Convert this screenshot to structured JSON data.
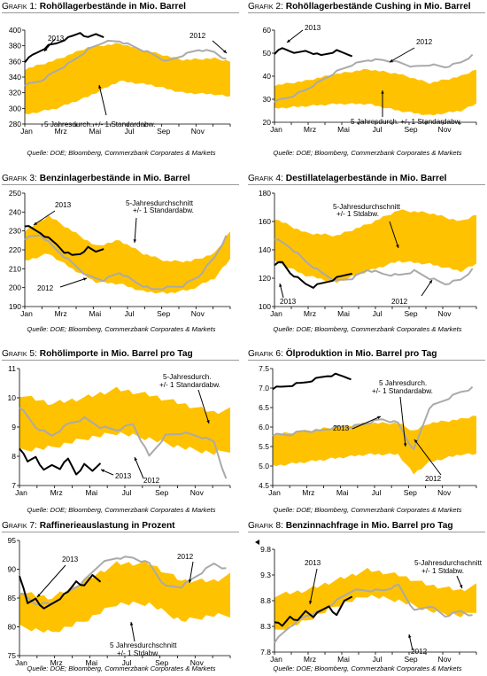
{
  "colors": {
    "band": "#FFC200",
    "avg": "#F2A900",
    "prev": "#AAAAAA",
    "cur": "#000000"
  },
  "panels": [
    {
      "graf": "Grafik 1:",
      "title": "Rohöllagerbestände in Mio. Barrel",
      "source": "Quelle: DOE; Bloomberg, Commerzbank Corporates & Markets"
    },
    {
      "graf": "Grafik 2:",
      "title": "Rohöllagerbestände Cushing in Mio. Barrel",
      "source": "Quelle: DOE; Bloomberg, Commerzbank Corporates & Markets"
    },
    {
      "graf": "Grafik 3:",
      "title": "Benzinlagerbestände in Mio. Barrel",
      "source": "Quelle: DOE; Bloomberg, Commerzbank Corporates & Markets"
    },
    {
      "graf": "Grafik 4:",
      "title": "Destillatelagerbestände in Mio. Barrel",
      "source": "Quelle: DOE; Bloomberg, Commerzbank Corporates & Markets"
    },
    {
      "graf": "Grafik 5:",
      "title": "Rohölimporte in Mio. Barrel pro Tag",
      "source": "Quelle: DOE; Bloomberg, Commerzbank Corporates & Markets"
    },
    {
      "graf": "Grafik 6:",
      "title": "Ölproduktion in Mio. Barrel pro Tag",
      "source": "Quelle: DOE; Bloomberg, Commerzbank Corporates & Markets"
    },
    {
      "graf": "Grafik 7:",
      "title": "Raffinerieauslastung in Prozent",
      "source": "Quelle: DOE; Bloomberg, Commerzbank Corporates & Markets"
    },
    {
      "graf": "Grafik 8:",
      "title": "Benzinnachfrage in Mio. Barrel pro Tag",
      "source": "Quelle: DOE; Bloomberg, Commerzbank Corporates & Markets"
    }
  ],
  "chart_data": [
    {
      "type": "line",
      "title": "Rohöllagerbestände in Mio. Barrel",
      "xticks": [
        "Jan",
        "Mrz",
        "Mai",
        "Jul",
        "Sep",
        "Nov"
      ],
      "ylim": [
        280,
        400
      ],
      "yticks": [
        280,
        300,
        320,
        340,
        360,
        380,
        400
      ],
      "annotations": [
        "2013",
        "2012",
        "5 Jahresdurch. +/- 1 Standardabw."
      ],
      "band": {
        "weeks": [
          0,
          8,
          16,
          24,
          32,
          40,
          48,
          52
        ],
        "low": [
          292,
          300,
          315,
          335,
          330,
          320,
          318,
          315
        ],
        "high": [
          350,
          362,
          378,
          383,
          372,
          362,
          364,
          360
        ]
      },
      "series": [
        {
          "name": "2012",
          "weeks": [
            0,
            4,
            8,
            12,
            16,
            20,
            24,
            28,
            32,
            36,
            40,
            44,
            48,
            51
          ],
          "values": [
            330,
            335,
            348,
            360,
            375,
            385,
            386,
            378,
            370,
            360,
            368,
            375,
            372,
            362
          ]
        },
        {
          "name": "2013",
          "weeks": [
            0,
            2,
            4,
            6,
            8,
            10,
            12,
            14,
            16,
            18,
            20
          ],
          "values": [
            360,
            368,
            374,
            380,
            383,
            388,
            392,
            397,
            390,
            395,
            392
          ]
        }
      ]
    },
    {
      "type": "line",
      "title": "Rohöllagerbestände Cushing in Mio. Barrel",
      "xticks": [
        "Jan",
        "Mrz",
        "Mai",
        "Jul",
        "Sep",
        "Nov"
      ],
      "ylim": [
        20,
        60
      ],
      "yticks": [
        20,
        30,
        40,
        50,
        60
      ],
      "annotations": [
        "2013",
        "2012",
        "5 Jahresdurch. +/- 1 Standardabw."
      ],
      "band": {
        "weeks": [
          0,
          8,
          16,
          24,
          32,
          40,
          48,
          52
        ],
        "low": [
          26,
          27,
          28,
          28,
          25,
          23,
          25,
          28
        ],
        "high": [
          36,
          38,
          41,
          43,
          41,
          37,
          40,
          43
        ]
      },
      "series": [
        {
          "name": "2012",
          "weeks": [
            0,
            4,
            8,
            12,
            16,
            20,
            24,
            28,
            32,
            36,
            40,
            44,
            48,
            51
          ],
          "values": [
            29,
            31,
            34,
            38,
            42,
            45,
            47,
            47,
            46,
            44,
            45,
            44,
            46,
            49
          ]
        },
        {
          "name": "2013",
          "weeks": [
            0,
            2,
            4,
            6,
            8,
            10,
            12,
            14,
            16,
            18,
            20
          ],
          "values": [
            50,
            52,
            51,
            50,
            51,
            50,
            49,
            50,
            51,
            50,
            49
          ]
        }
      ]
    },
    {
      "type": "line",
      "title": "Benzinlagerbestände in Mio. Barrel",
      "xticks": [
        "Jan",
        "Mrz",
        "Mai",
        "Jul",
        "Sep",
        "Nov"
      ],
      "ylim": [
        190,
        250
      ],
      "yticks": [
        190,
        200,
        210,
        220,
        230,
        240,
        250
      ],
      "annotations": [
        "2013",
        "5-Jahresdurchschnitt",
        "+/- 1 Standardabw.",
        "2012"
      ],
      "band": {
        "weeks": [
          0,
          6,
          12,
          18,
          24,
          30,
          36,
          42,
          48,
          52
        ],
        "low": [
          214,
          218,
          210,
          203,
          202,
          198,
          197,
          199,
          205,
          215
        ],
        "high": [
          230,
          238,
          230,
          222,
          225,
          218,
          214,
          214,
          218,
          230
        ]
      },
      "series": [
        {
          "name": "2012",
          "weeks": [
            0,
            4,
            8,
            12,
            16,
            20,
            24,
            28,
            32,
            36,
            40,
            44,
            48,
            51
          ],
          "values": [
            226,
            228,
            220,
            213,
            206,
            204,
            208,
            203,
            199,
            200,
            201,
            206,
            216,
            227
          ]
        },
        {
          "name": "2013",
          "weeks": [
            0,
            2,
            4,
            6,
            8,
            10,
            12,
            14,
            16,
            18,
            20
          ],
          "values": [
            233,
            231,
            229,
            226,
            223,
            219,
            217,
            218,
            221,
            219,
            221
          ]
        }
      ]
    },
    {
      "type": "line",
      "title": "Destillatelagerbestände in Mio. Barrel",
      "xticks": [
        "Jan",
        "Mrz",
        "Mai",
        "Jul",
        "Sep",
        "Nov"
      ],
      "ylim": [
        100,
        180
      ],
      "yticks": [
        100,
        120,
        140,
        160,
        180
      ],
      "annotations": [
        "5-Jahresdurchschnitt",
        "+/- 1 Stdabw.",
        "2013",
        "2012"
      ],
      "band": {
        "weeks": [
          0,
          8,
          16,
          24,
          32,
          40,
          48,
          52
        ],
        "low": [
          132,
          122,
          117,
          125,
          132,
          130,
          125,
          130
        ],
        "high": [
          162,
          152,
          150,
          158,
          168,
          166,
          160,
          165
        ]
      },
      "series": [
        {
          "name": "2012",
          "weeks": [
            0,
            4,
            8,
            12,
            16,
            20,
            24,
            28,
            32,
            36,
            40,
            44,
            48,
            51
          ],
          "values": [
            148,
            142,
            132,
            124,
            118,
            120,
            126,
            123,
            122,
            125,
            120,
            116,
            119,
            126
          ]
        },
        {
          "name": "2013",
          "weeks": [
            0,
            2,
            4,
            6,
            8,
            10,
            12,
            14,
            16,
            18,
            20
          ],
          "values": [
            130,
            131,
            124,
            120,
            116,
            114,
            116,
            118,
            120,
            122,
            124
          ]
        }
      ]
    },
    {
      "type": "line",
      "title": "Rohölimporte in Mio. Barrel pro Tag",
      "xticks": [
        "Jan",
        "Mrz",
        "Mai",
        "Jul",
        "Sep",
        "Nov"
      ],
      "ylim": [
        7,
        11
      ],
      "yticks": [
        7,
        8,
        9,
        10,
        11
      ],
      "annotations": [
        "5-Jahresdurch.",
        "+/- 1 Standardabw.",
        "2013",
        "2012"
      ],
      "band": {
        "weeks": [
          0,
          8,
          16,
          24,
          32,
          40,
          48,
          52
        ],
        "low": [
          8.2,
          8.3,
          8.6,
          8.8,
          8.6,
          8.3,
          8.1,
          8.2
        ],
        "high": [
          10.1,
          9.8,
          10.0,
          10.3,
          10.1,
          9.8,
          9.5,
          9.6
        ]
      },
      "series": [
        {
          "name": "2012",
          "weeks": [
            0,
            4,
            8,
            12,
            16,
            20,
            24,
            28,
            32,
            36,
            40,
            44,
            48,
            51
          ],
          "values": [
            9.7,
            9.0,
            8.7,
            9.1,
            9.3,
            9.0,
            8.9,
            9.1,
            8.0,
            8.7,
            8.8,
            8.7,
            8.5,
            7.2
          ]
        },
        {
          "name": "2013",
          "weeks": [
            0,
            2,
            4,
            6,
            8,
            10,
            12,
            14,
            16,
            18,
            20
          ],
          "values": [
            8.3,
            7.8,
            8.0,
            7.5,
            7.7,
            7.6,
            7.9,
            7.4,
            7.7,
            7.5,
            7.8
          ]
        }
      ]
    },
    {
      "type": "line",
      "title": "Ölproduktion in Mio. Barrel pro Tag",
      "xticks": [
        "Jan",
        "Mrz",
        "Mai",
        "Jul",
        "Sep",
        "Nov"
      ],
      "ylim": [
        4.5,
        7.5
      ],
      "yticks": [
        4.5,
        5.0,
        5.5,
        6.0,
        6.5,
        7.0,
        7.5
      ],
      "annotations": [
        "5 Jahresdurch.",
        "+/- 1 Standardabw.",
        "2013",
        "2012"
      ],
      "band": {
        "weeks": [
          0,
          8,
          16,
          24,
          32,
          36,
          40,
          48,
          52
        ],
        "low": [
          5.0,
          5.1,
          5.2,
          5.3,
          5.3,
          4.8,
          5.1,
          5.3,
          5.3
        ],
        "high": [
          5.8,
          5.9,
          6.0,
          6.1,
          6.1,
          5.9,
          6.1,
          6.2,
          6.3
        ]
      },
      "series": [
        {
          "name": "2012",
          "weeks": [
            0,
            4,
            8,
            12,
            16,
            20,
            24,
            28,
            32,
            36,
            40,
            44,
            48,
            51
          ],
          "values": [
            5.8,
            5.8,
            5.9,
            5.9,
            6.0,
            6.0,
            6.1,
            6.2,
            6.1,
            5.4,
            6.5,
            6.7,
            6.9,
            7.0
          ]
        },
        {
          "name": "2013",
          "weeks": [
            0,
            2,
            4,
            6,
            8,
            10,
            12,
            14,
            16,
            18,
            20
          ],
          "values": [
            7.0,
            7.02,
            7.06,
            7.1,
            7.14,
            7.2,
            7.26,
            7.32,
            7.34,
            7.3,
            7.25
          ]
        }
      ]
    },
    {
      "type": "line",
      "title": "Raffinerieauslastung in Prozent",
      "xticks": [
        "Jan",
        "Mrz",
        "Mai",
        "Jul",
        "Sep",
        "Nov"
      ],
      "ylim": [
        75,
        95
      ],
      "yticks": [
        75,
        80,
        85,
        90,
        95
      ],
      "annotations": [
        "2013",
        "2012",
        "5 Jahresdurchschnitt",
        "+/- 1 Stdabw."
      ],
      "band": {
        "weeks": [
          0,
          8,
          16,
          24,
          32,
          40,
          48,
          52
        ],
        "low": [
          80,
          79,
          81,
          84,
          84,
          81,
          82,
          82
        ],
        "high": [
          86,
          85,
          88,
          91,
          91,
          88,
          88,
          89
        ]
      },
      "series": [
        {
          "name": "2012",
          "weeks": [
            0,
            4,
            8,
            12,
            16,
            20,
            24,
            28,
            32,
            36,
            40,
            44,
            48,
            51
          ],
          "values": [
            86,
            84,
            84,
            86,
            88,
            91,
            92,
            92,
            91,
            87,
            87,
            89,
            91,
            90
          ]
        },
        {
          "name": "2013",
          "weeks": [
            0,
            2,
            4,
            6,
            8,
            10,
            12,
            14,
            16,
            18,
            20
          ],
          "values": [
            89,
            84,
            85,
            83,
            84,
            85,
            86,
            88,
            87,
            89,
            88
          ]
        }
      ]
    },
    {
      "type": "line",
      "title": "Benzinnachfrage in Mio. Barrel pro Tag",
      "xticks": [
        "Jan",
        "Mrz",
        "Mai",
        "Jul",
        "Sep",
        "Nov"
      ],
      "ylim": [
        7.8,
        9.8
      ],
      "yticks": [
        7.8,
        8.3,
        8.8,
        9.3,
        9.8
      ],
      "annotations": [
        "2013",
        "5-Jahresdurchschnitt",
        "+/- 1 Stdabw.",
        "2012"
      ],
      "band": {
        "weeks": [
          0,
          8,
          16,
          24,
          32,
          40,
          48,
          52
        ],
        "low": [
          8.2,
          8.4,
          8.7,
          8.9,
          8.8,
          8.6,
          8.5,
          8.6
        ],
        "high": [
          8.9,
          9.0,
          9.2,
          9.4,
          9.3,
          9.1,
          9.0,
          9.1
        ]
      },
      "series": [
        {
          "name": "2012",
          "weeks": [
            0,
            4,
            8,
            12,
            16,
            20,
            24,
            28,
            32,
            36,
            40,
            44,
            48,
            51
          ],
          "values": [
            8.0,
            8.3,
            8.5,
            8.6,
            8.8,
            9.0,
            9.0,
            9.0,
            9.1,
            8.6,
            8.7,
            8.5,
            8.6,
            8.5
          ]
        },
        {
          "name": "2013",
          "weeks": [
            0,
            2,
            4,
            6,
            8,
            10,
            12,
            14,
            16,
            18,
            20
          ],
          "values": [
            8.4,
            8.3,
            8.5,
            8.4,
            8.6,
            8.5,
            8.6,
            8.7,
            8.5,
            8.8,
            8.9
          ]
        }
      ]
    }
  ]
}
